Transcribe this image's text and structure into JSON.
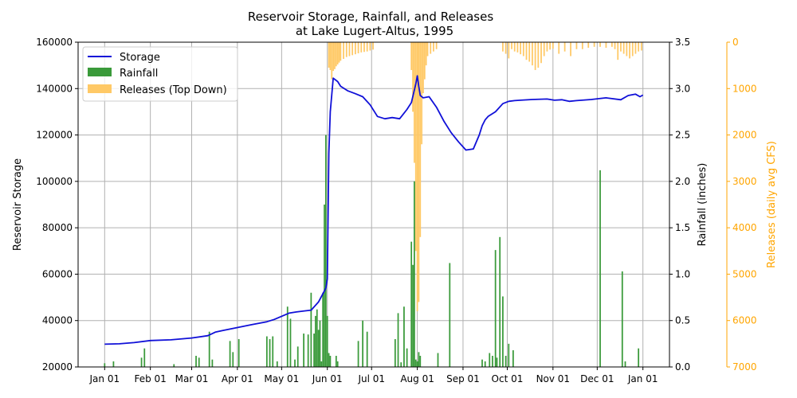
{
  "chart_data": {
    "type": "bar+line",
    "title": "Reservoir Storage, Rainfall, and Releases",
    "subtitle": "at Lake Lugert-Altus, 1995",
    "xlabel": "",
    "x_ticks": [
      "Jan 01",
      "Feb 01",
      "Mar 01",
      "Apr 01",
      "May 01",
      "Jun 01",
      "Jul 01",
      "Aug 01",
      "Sep 01",
      "Oct 01",
      "Nov 01",
      "Dec 01",
      "Jan 01"
    ],
    "x_tick_days": [
      0,
      31,
      59,
      90,
      120,
      151,
      181,
      212,
      243,
      273,
      304,
      334,
      365
    ],
    "x_domain_days": [
      -18,
      383
    ],
    "y_left": {
      "label": "Reservoir Storage",
      "ylim": [
        20000,
        160000
      ],
      "ticks": [
        20000,
        40000,
        60000,
        80000,
        100000,
        120000,
        140000,
        160000
      ]
    },
    "y_right1": {
      "label": "Rainfall (inches)",
      "ylim": [
        0,
        3.5
      ],
      "ticks": [
        "0.0",
        "0.5",
        "1.0",
        "1.5",
        "2.0",
        "2.5",
        "3.0",
        "3.5"
      ]
    },
    "y_right2": {
      "label": "Releases (daily avg CFS)",
      "ylim": [
        7000,
        0
      ],
      "inverted": true,
      "ticks": [
        0,
        1000,
        2000,
        3000,
        4000,
        5000,
        6000,
        7000
      ]
    },
    "grid": true,
    "legend": {
      "placement": "top-left",
      "entries": [
        "Storage",
        "Rainfall",
        "Releases (Top Down)"
      ]
    },
    "colors": {
      "storage": "#1010d8",
      "rainfall": "#3a9a3a",
      "releases": "#ffc966",
      "releases_axis": "#ffa500"
    },
    "series": [
      {
        "name": "Storage",
        "kind": "line",
        "days": [
          0,
          10,
          20,
          31,
          45,
          59,
          70,
          75,
          80,
          90,
          100,
          110,
          115,
          125,
          130,
          140,
          145,
          150,
          151,
          152,
          153,
          155,
          158,
          160,
          165,
          170,
          175,
          180,
          185,
          190,
          195,
          200,
          205,
          208,
          211,
          212,
          213,
          214,
          216,
          220,
          225,
          230,
          235,
          240,
          245,
          250,
          254,
          256,
          258,
          260,
          265,
          270,
          274,
          278,
          282,
          290,
          300,
          305,
          310,
          315,
          320,
          330,
          340,
          350,
          355,
          360,
          363,
          365
        ],
        "values": [
          29800,
          30000,
          30500,
          31400,
          31700,
          32500,
          33500,
          35000,
          35700,
          37000,
          38300,
          39500,
          40500,
          43200,
          43700,
          44500,
          48000,
          54000,
          58000,
          112000,
          130000,
          144500,
          143000,
          141000,
          139000,
          137800,
          136500,
          133000,
          128000,
          127000,
          127500,
          127000,
          131000,
          134000,
          142000,
          145500,
          141000,
          137000,
          136000,
          136500,
          132000,
          126000,
          121000,
          117000,
          113500,
          114000,
          120000,
          124000,
          126500,
          128000,
          130000,
          133500,
          134500,
          134800,
          135000,
          135300,
          135500,
          135000,
          135200,
          134500,
          134800,
          135300,
          136000,
          135200,
          137000,
          137600,
          136500,
          137200
        ]
      },
      {
        "name": "Rainfall",
        "kind": "bar",
        "days": [
          0,
          6,
          25,
          27,
          47,
          62,
          64,
          71,
          73,
          85,
          87,
          91,
          110,
          112,
          114,
          117,
          124,
          126,
          129,
          131,
          135,
          138,
          140,
          142,
          143,
          144,
          145,
          146,
          147,
          148,
          149,
          150,
          151,
          152,
          153,
          157,
          158,
          172,
          175,
          178,
          197,
          199,
          201,
          203,
          205,
          208,
          209,
          210,
          211,
          212,
          213,
          214,
          226,
          234,
          256,
          258,
          261,
          263,
          265,
          266,
          268,
          270,
          272,
          274,
          277,
          336,
          351,
          353,
          362
        ],
        "values": [
          0.04,
          0.06,
          0.1,
          0.2,
          0.03,
          0.12,
          0.1,
          0.38,
          0.08,
          0.28,
          0.16,
          0.3,
          0.33,
          0.3,
          0.33,
          0.06,
          0.65,
          0.52,
          0.08,
          0.22,
          0.36,
          0.35,
          0.8,
          0.36,
          0.55,
          0.62,
          0.4,
          0.5,
          0.06,
          0.8,
          1.75,
          2.5,
          0.55,
          0.15,
          0.12,
          0.12,
          0.06,
          0.28,
          0.5,
          0.38,
          0.3,
          0.58,
          0.05,
          0.65,
          0.2,
          1.35,
          1.1,
          2.0,
          0.08,
          0.06,
          0.16,
          0.12,
          0.15,
          1.12,
          0.08,
          0.06,
          0.15,
          0.12,
          1.26,
          0.1,
          1.4,
          0.76,
          0.12,
          0.25,
          0.18,
          2.12,
          1.03,
          0.06,
          0.2
        ]
      },
      {
        "name": "Releases (Top Down)",
        "kind": "bar-inverted",
        "days": [
          152,
          153,
          154,
          155,
          156,
          157,
          158,
          159,
          160,
          162,
          164,
          166,
          168,
          170,
          172,
          174,
          176,
          178,
          180,
          182,
          208,
          209,
          210,
          211,
          212,
          213,
          214,
          215,
          216,
          217,
          218,
          219,
          221,
          223,
          225,
          270,
          272,
          274,
          276,
          278,
          280,
          282,
          284,
          286,
          288,
          290,
          292,
          294,
          296,
          298,
          300,
          302,
          304,
          308,
          312,
          316,
          320,
          324,
          328,
          332,
          336,
          340,
          344,
          346,
          348,
          350,
          352,
          354,
          356,
          358,
          360,
          362,
          364
        ],
        "values": [
          550,
          600,
          800,
          620,
          580,
          520,
          480,
          440,
          400,
          360,
          320,
          300,
          280,
          260,
          240,
          220,
          210,
          200,
          180,
          160,
          600,
          1500,
          2600,
          4500,
          5800,
          5600,
          4200,
          2200,
          1100,
          800,
          500,
          300,
          250,
          200,
          150,
          200,
          250,
          350,
          150,
          200,
          220,
          260,
          300,
          380,
          420,
          500,
          600,
          550,
          450,
          300,
          200,
          160,
          140,
          250,
          200,
          300,
          150,
          150,
          120,
          100,
          100,
          120,
          100,
          150,
          380,
          200,
          250,
          300,
          350,
          300,
          250,
          200,
          180
        ]
      }
    ]
  }
}
